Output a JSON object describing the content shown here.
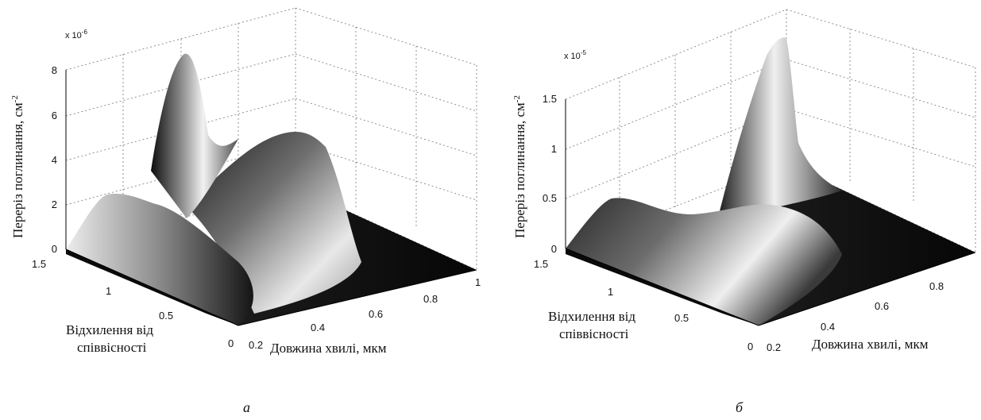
{
  "chart_data": [
    {
      "type": "surface",
      "panel_label": "а",
      "zlabel": "Переріз поглинання,  см",
      "zlabel_sup": "-2",
      "xlabel": "Довжина хвилі, мкм",
      "ylabel_line1": "Відхилення від",
      "ylabel_line2": "співвісності",
      "z_multiplier": "x 10",
      "z_multiplier_exp": "-6",
      "x_ticks": [
        "0.2",
        "0.4",
        "0.6",
        "0.8",
        "1"
      ],
      "y_ticks": [
        "0",
        "0.5",
        "1",
        "1.5"
      ],
      "z_ticks": [
        "0",
        "2",
        "4",
        "6",
        "8"
      ],
      "xlim": [
        0.2,
        1.0
      ],
      "ylim": [
        0,
        1.5
      ],
      "zlim": [
        0,
        8
      ],
      "grid": true,
      "colormap": "gray",
      "features": [
        {
          "x": 0.3,
          "y": 1.5,
          "z": 8.0
        },
        {
          "x": 0.5,
          "y": 1.2,
          "z": 4.2
        },
        {
          "x": 0.55,
          "y": 0.2,
          "z": 4.5
        },
        {
          "x": 0.2,
          "y": 1.5,
          "z": 2.3
        }
      ]
    },
    {
      "type": "surface",
      "panel_label": "б",
      "zlabel": "Переріз поглинання,  см",
      "zlabel_sup": "-2",
      "xlabel": "Довжина хвилі, мкм",
      "ylabel_line1": "Відхилення від",
      "ylabel_line2": "співвісності",
      "z_multiplier": "x 10",
      "z_multiplier_exp": "-5",
      "x_ticks": [
        "0.2",
        "0.4",
        "0.6",
        "0.8"
      ],
      "y_ticks": [
        "0",
        "0.5",
        "1",
        "1.5"
      ],
      "z_ticks": [
        "0",
        "0.5",
        "1",
        "1.5"
      ],
      "xlim": [
        0.2,
        0.9
      ],
      "ylim": [
        0,
        1.5
      ],
      "zlim": [
        0,
        1.7
      ],
      "grid": true,
      "colormap": "gray",
      "features": [
        {
          "x": 0.33,
          "y": 1.5,
          "z": 1.7
        },
        {
          "x": 0.45,
          "y": 0.4,
          "z": 0.45
        },
        {
          "x": 0.2,
          "y": 1.5,
          "z": 0.45
        }
      ]
    }
  ]
}
